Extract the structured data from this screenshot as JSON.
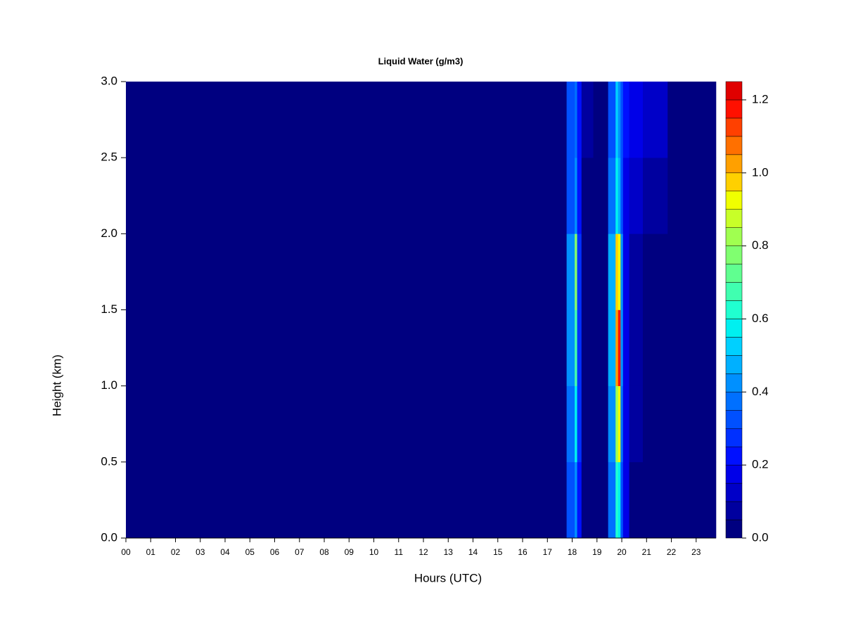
{
  "chart_data": {
    "type": "heatmap",
    "title": "Liquid Water (g/m3)",
    "x_label": "Hours (UTC)",
    "y_label": "Height (km)",
    "xlim": [
      0,
      23.8
    ],
    "ylim": [
      0,
      3
    ],
    "xticks": [
      {
        "value": 0,
        "label": "00"
      },
      {
        "value": 1,
        "label": "01"
      },
      {
        "value": 2,
        "label": "02"
      },
      {
        "value": 3,
        "label": "03"
      },
      {
        "value": 4,
        "label": "04"
      },
      {
        "value": 5,
        "label": "05"
      },
      {
        "value": 6,
        "label": "06"
      },
      {
        "value": 7,
        "label": "07"
      },
      {
        "value": 8,
        "label": "08"
      },
      {
        "value": 9,
        "label": "09"
      },
      {
        "value": 10,
        "label": "10"
      },
      {
        "value": 11,
        "label": "11"
      },
      {
        "value": 12,
        "label": "12"
      },
      {
        "value": 13,
        "label": "13"
      },
      {
        "value": 14,
        "label": "14"
      },
      {
        "value": 15,
        "label": "15"
      },
      {
        "value": 16,
        "label": "16"
      },
      {
        "value": 17,
        "label": "17"
      },
      {
        "value": 18,
        "label": "18"
      },
      {
        "value": 19,
        "label": "19"
      },
      {
        "value": 20,
        "label": "20"
      },
      {
        "value": 21,
        "label": "21"
      },
      {
        "value": 22,
        "label": "22"
      },
      {
        "value": 23,
        "label": "23"
      }
    ],
    "yticks": [
      {
        "value": 0,
        "label": "0.0"
      },
      {
        "value": 0.5,
        "label": "0.5"
      },
      {
        "value": 1,
        "label": "1.0"
      },
      {
        "value": 1.5,
        "label": "1.5"
      },
      {
        "value": 2,
        "label": "2.0"
      },
      {
        "value": 2.5,
        "label": "2.5"
      },
      {
        "value": 3,
        "label": "3.0"
      }
    ],
    "x": [
      6,
      12.5,
      17.5,
      18.05,
      18.15,
      18.25,
      18.5,
      19.2,
      19.7,
      19.8,
      19.9,
      20.0,
      20.1,
      20.5,
      21.2,
      22.5
    ],
    "y": [
      0.25,
      0.75,
      1.25,
      1.75,
      2.25,
      2.75
    ],
    "z": [
      [
        0.01,
        0.04,
        0.01,
        0.3,
        0.4,
        0.22,
        0.03,
        0.02,
        0.35,
        0.6,
        0.55,
        0.3,
        0.15,
        0.04,
        0.02,
        0.01
      ],
      [
        0.01,
        0.01,
        0.01,
        0.35,
        0.55,
        0.25,
        0.03,
        0.02,
        0.4,
        0.8,
        0.9,
        0.35,
        0.15,
        0.05,
        0.02,
        0.01
      ],
      [
        0.01,
        0.01,
        0.01,
        0.4,
        0.65,
        0.25,
        0.03,
        0.02,
        0.45,
        1.0,
        1.15,
        0.4,
        0.15,
        0.05,
        0.02,
        0.01
      ],
      [
        0.01,
        0.01,
        0.01,
        0.4,
        0.75,
        0.25,
        0.03,
        0.02,
        0.45,
        0.95,
        0.9,
        0.4,
        0.15,
        0.06,
        0.03,
        0.01
      ],
      [
        0.01,
        0.01,
        0.01,
        0.3,
        0.4,
        0.2,
        0.04,
        0.03,
        0.35,
        0.55,
        0.45,
        0.3,
        0.18,
        0.1,
        0.06,
        0.02
      ],
      [
        0.01,
        0.01,
        0.02,
        0.3,
        0.35,
        0.2,
        0.05,
        0.04,
        0.3,
        0.5,
        0.4,
        0.3,
        0.2,
        0.15,
        0.1,
        0.03
      ]
    ],
    "levels": [
      0,
      0.05,
      0.1,
      0.15,
      0.2,
      0.25,
      0.3,
      0.35,
      0.4,
      0.45,
      0.5,
      0.55,
      0.6,
      0.65,
      0.7,
      0.75,
      0.8,
      0.85,
      0.9,
      0.95,
      1.0,
      1.05,
      1.1,
      1.15,
      1.2,
      1.25
    ],
    "colors": [
      "#000080",
      "#00009f",
      "#0000c8",
      "#0000e8",
      "#0010ff",
      "#0030ff",
      "#0050ff",
      "#0070ff",
      "#0090ff",
      "#00b0ff",
      "#00d0ff",
      "#00f0f0",
      "#20ffd0",
      "#40ffb0",
      "#60ff90",
      "#80ff70",
      "#a0ff50",
      "#c8ff28",
      "#f0ff00",
      "#ffd000",
      "#ffa000",
      "#ff7000",
      "#ff4000",
      "#ff1000",
      "#e00000"
    ],
    "colorbar_ticks": [
      {
        "value": 0,
        "label": "0.0"
      },
      {
        "value": 0.2,
        "label": "0.2"
      },
      {
        "value": 0.4,
        "label": "0.4"
      },
      {
        "value": 0.6,
        "label": "0.6"
      },
      {
        "value": 0.8,
        "label": "0.8"
      },
      {
        "value": 1.0,
        "label": "1.0"
      },
      {
        "value": 1.2,
        "label": "1.2"
      }
    ]
  }
}
